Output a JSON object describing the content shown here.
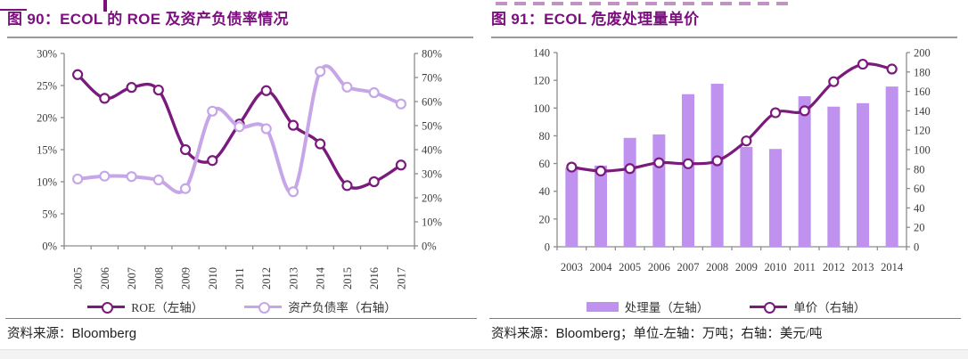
{
  "figures": [
    {
      "title": "图 90：ECOL 的 ROE 及资产负债率情况",
      "source_prefix": "资料来源：",
      "source_name": "Bloomberg",
      "source_suffix": ""
    },
    {
      "title": "图 91：ECOL 危废处理量单价",
      "source_prefix": "资料来源：",
      "source_name": "Bloomberg",
      "source_suffix": "；单位-左轴：万吨；右轴：美元/吨"
    }
  ],
  "colors": {
    "title_purple": "#7b0f7e",
    "dark_line": "#7a1a7c",
    "light_line": "#c7a6e8",
    "bar_fill": "#be92ee",
    "axis_line": "#8c8c8c",
    "tick_text": "#3d3d3d"
  },
  "chart_data": [
    {
      "type": "line",
      "title": "图 90：ECOL 的 ROE 及资产负债率情况",
      "categories": [
        "2005",
        "2006",
        "2007",
        "2008",
        "2009",
        "2010",
        "2011",
        "2012",
        "2013",
        "2014",
        "2015",
        "2016",
        "2017"
      ],
      "series": [
        {
          "name": "ROE（左轴）",
          "type": "line",
          "axis": "left",
          "color": "#7a1a7c",
          "values": [
            26.7,
            23.0,
            24.7,
            24.3,
            15.0,
            13.3,
            19.0,
            24.2,
            18.8,
            15.9,
            9.4,
            10.0,
            12.6
          ]
        },
        {
          "name": "资产负债率（右轴）",
          "type": "line",
          "axis": "right",
          "color": "#c7a6e8",
          "values": [
            27.8,
            29.0,
            28.8,
            27.4,
            23.8,
            56.0,
            49.5,
            48.7,
            22.5,
            72.5,
            66.0,
            63.7,
            59.0
          ]
        }
      ],
      "left_axis": {
        "min": 0,
        "max": 30,
        "step": 5,
        "format": "percent"
      },
      "right_axis": {
        "min": 0,
        "max": 80,
        "step": 10,
        "format": "percent"
      },
      "grid": false,
      "legend_position": "bottom",
      "x_labels_rotated": true
    },
    {
      "type": "bar-line",
      "title": "图 91：ECOL 危废处理量单价",
      "categories": [
        "2003",
        "2004",
        "2005",
        "2006",
        "2007",
        "2008",
        "2009",
        "2010",
        "2011",
        "2012",
        "2013",
        "2014"
      ],
      "series": [
        {
          "name": "处理量（左轴）",
          "type": "bar",
          "axis": "left",
          "color": "#be92ee",
          "values": [
            57,
            58.5,
            78.5,
            81,
            110,
            117.5,
            72,
            70.5,
            108.5,
            101,
            103.5,
            115.5
          ]
        },
        {
          "name": "单价（右轴）",
          "type": "line",
          "axis": "right",
          "color": "#7a1a7c",
          "values": [
            82,
            78,
            80.5,
            86.5,
            85.5,
            88.5,
            109,
            138,
            140,
            170,
            188,
            183
          ]
        }
      ],
      "left_axis": {
        "min": 0,
        "max": 140,
        "step": 20,
        "format": "number"
      },
      "right_axis": {
        "min": 0,
        "max": 200,
        "step": 20,
        "format": "number"
      },
      "grid": false,
      "legend_position": "bottom",
      "x_labels_rotated": false
    }
  ]
}
